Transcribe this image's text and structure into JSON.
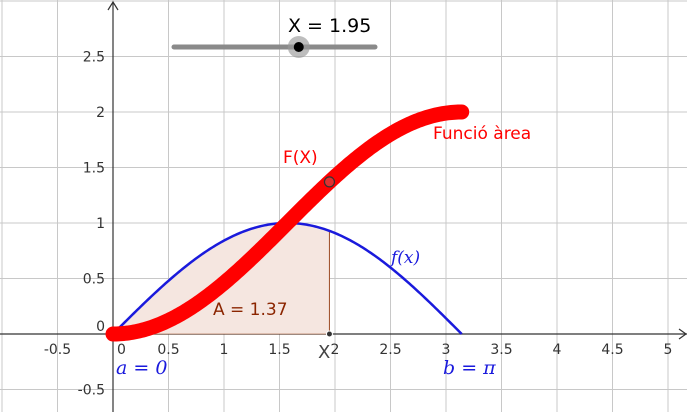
{
  "slider": {
    "label": "X = 1.95",
    "value": 1.95,
    "min": 0,
    "max": 3.14159
  },
  "labels": {
    "area_function": "Funció àrea",
    "F_point": "F(X)",
    "f_curve": "f(x)",
    "area_value": "A = 1.37",
    "x_point": "X",
    "a_bound": "a = 0",
    "b_bound": "b = π"
  },
  "colors": {
    "area_curve": "#ff0000",
    "f_curve": "#1a1adc",
    "region_fill": "#f5e6e0",
    "region_stroke": "#a0522d",
    "area_label": "#8b2500",
    "grid": "#c8c8c8",
    "axis": "#333333"
  },
  "chart_data": {
    "type": "line",
    "x_ticks": [
      -0.5,
      0,
      0.5,
      1,
      1.5,
      2,
      2.5,
      3,
      3.5,
      4,
      4.5,
      5
    ],
    "x_tick_labels": [
      "-0.5",
      "0",
      "0.5",
      "1",
      "1.5",
      "2",
      "2.5",
      "3",
      "3.5",
      "4",
      "4.5",
      "5"
    ],
    "y_ticks": [
      -0.5,
      0.5,
      1,
      1.5,
      2,
      2.5
    ],
    "y_tick_labels": [
      "-0.5",
      "0.5",
      "1",
      "1.5",
      "2",
      "2.5"
    ],
    "xlim": [
      -1,
      5.2
    ],
    "ylim": [
      -0.7,
      3.0
    ],
    "grid": true,
    "series": [
      {
        "name": "f(x)",
        "function": "sin(x)",
        "domain": [
          0,
          3.14159
        ]
      },
      {
        "name": "Funció àrea",
        "function": "1 - cos(x)",
        "domain": [
          0,
          3.14159
        ]
      }
    ],
    "shaded_region": {
      "from": 0,
      "to": 1.95,
      "area": 1.37
    }
  }
}
